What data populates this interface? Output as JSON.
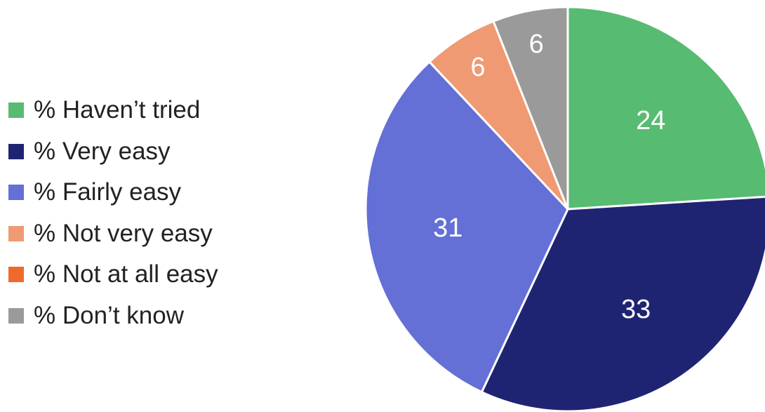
{
  "chart_data": {
    "type": "pie",
    "title": "",
    "categories": [
      "% Haven’t tried",
      "% Very easy",
      "% Fairly easy",
      "% Not very easy",
      "% Not at all easy",
      "% Don’t know"
    ],
    "values": [
      24,
      33,
      31,
      6,
      0,
      6
    ],
    "data_labels": [
      "24",
      "33",
      "31",
      "6",
      "",
      "6"
    ],
    "colors": [
      "#57bb72",
      "#1f2472",
      "#6470d6",
      "#ef9a72",
      "#ef6a2a",
      "#9a9a9a"
    ],
    "legend_position": "left",
    "start_angle": "12 o'clock, clockwise"
  }
}
